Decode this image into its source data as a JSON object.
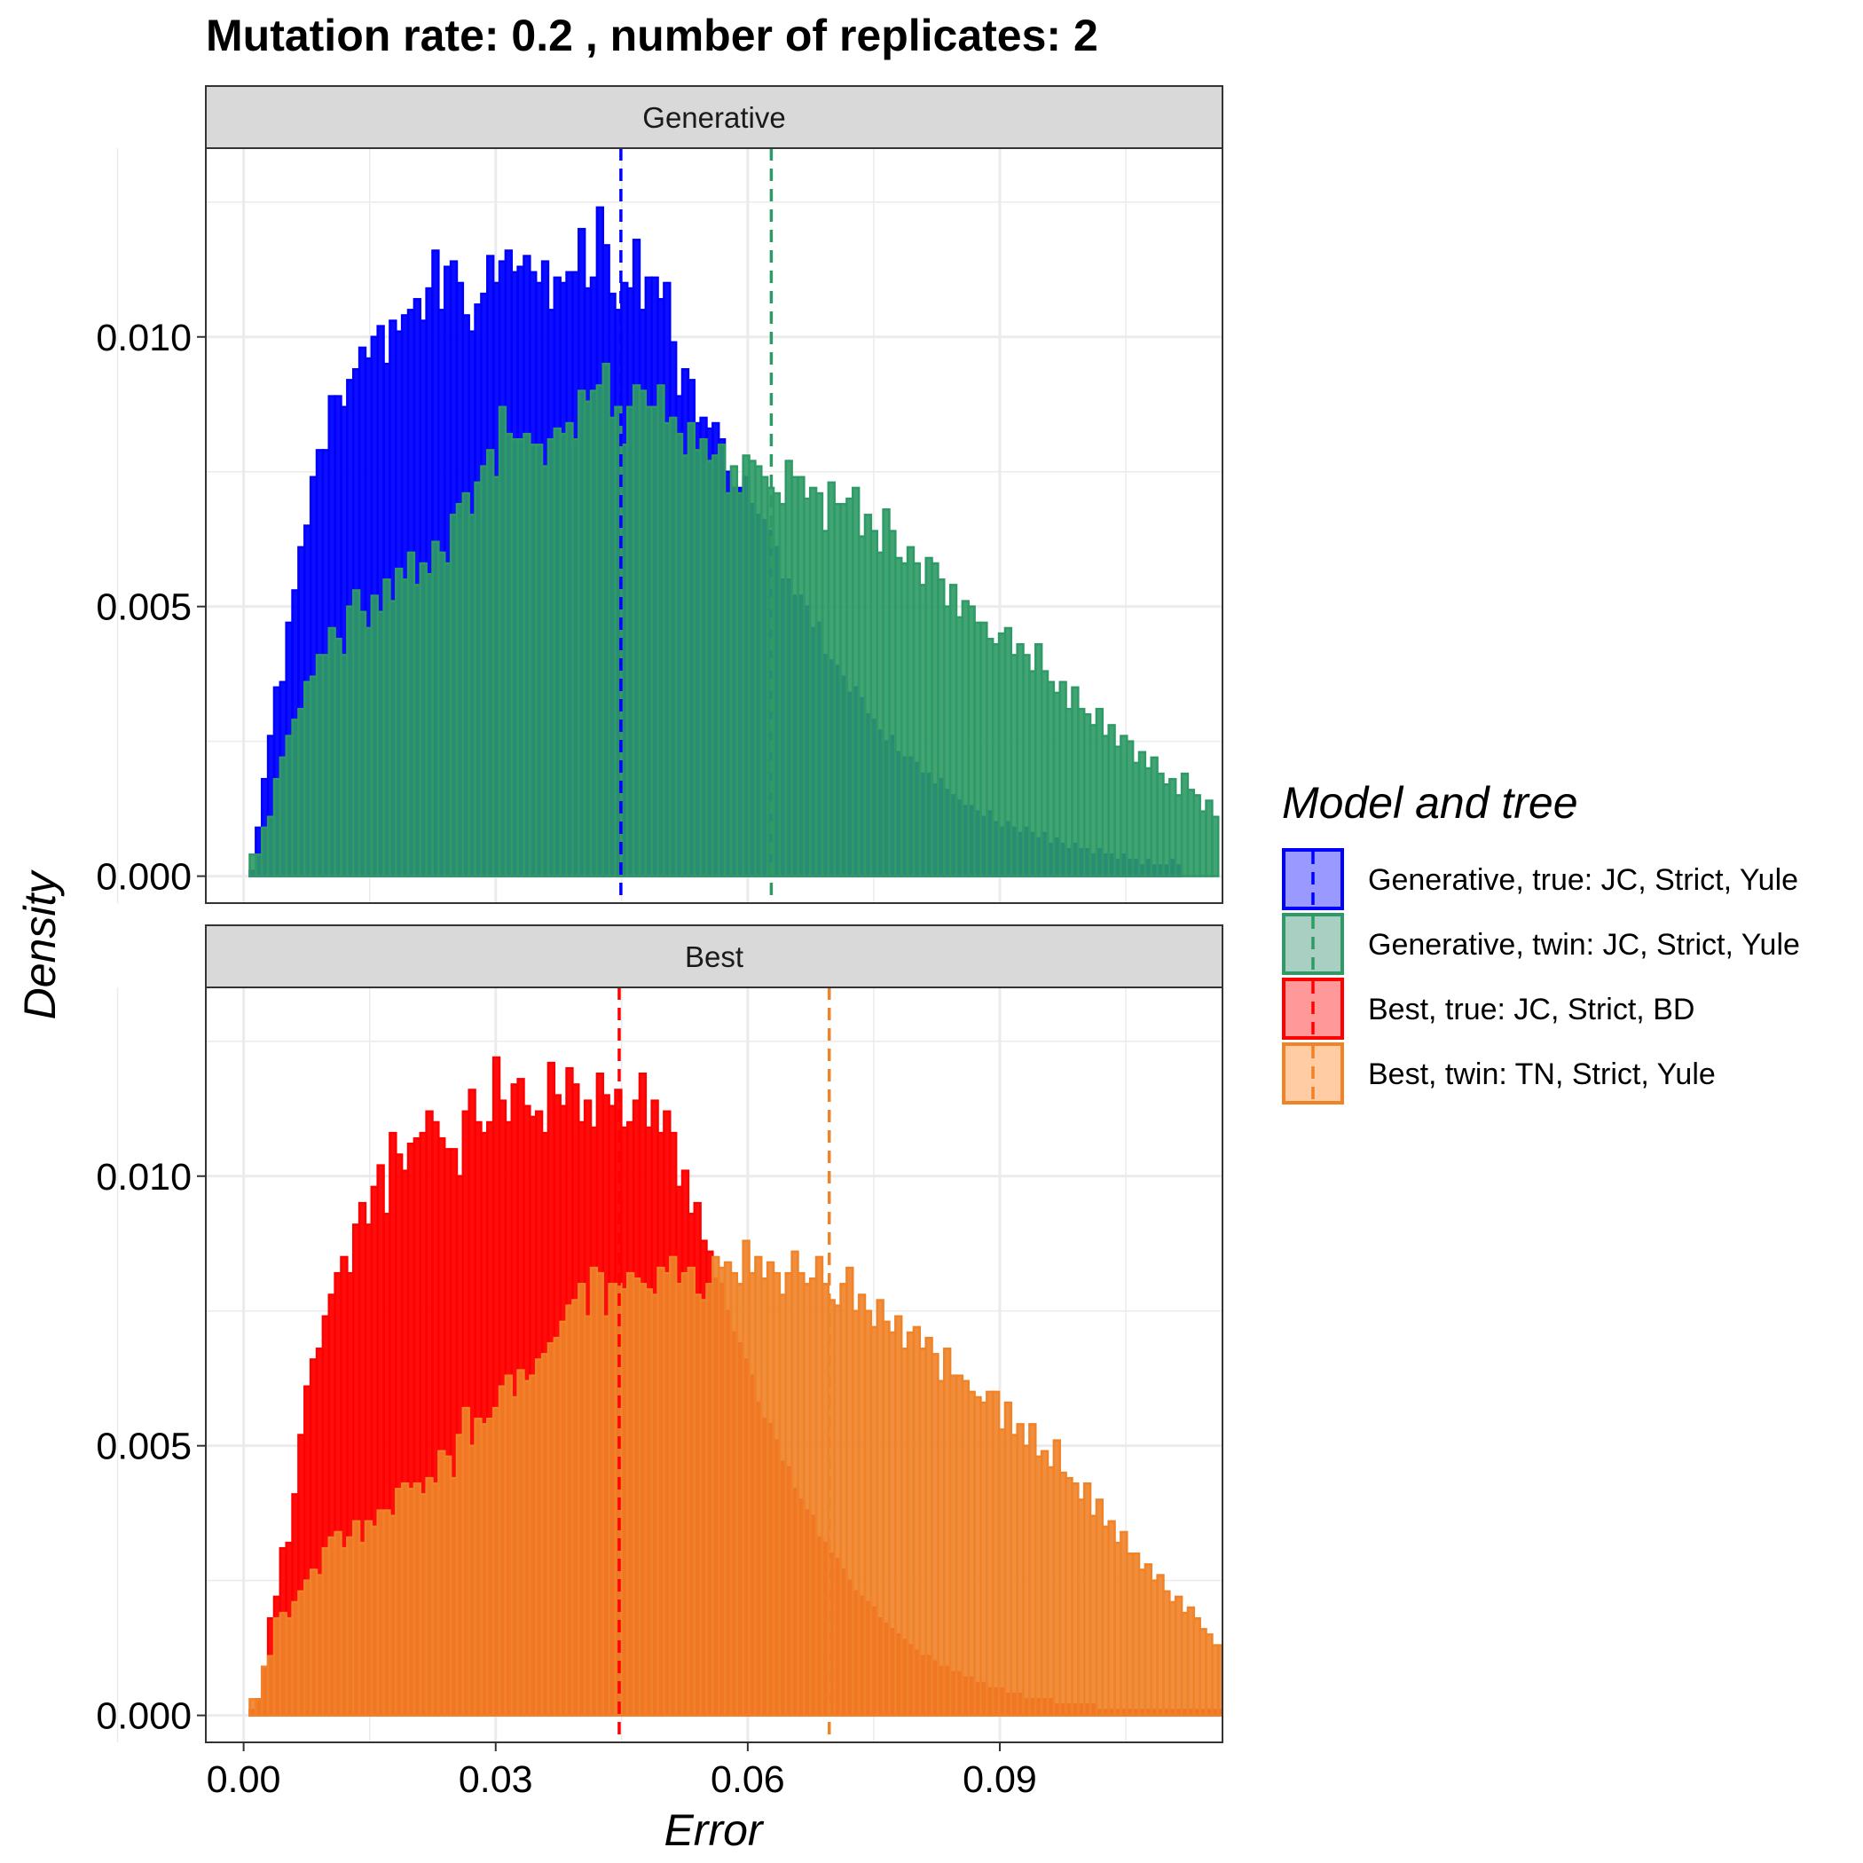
{
  "chart_data": {
    "type": "histogram",
    "title": "Mutation rate:  0.2 , number of replicates: 2",
    "xlabel": "Error",
    "ylabel": "Density",
    "xlim": [
      -0.0045,
      0.1165
    ],
    "ylim": [
      -0.0005,
      0.0135
    ],
    "x_ticks": [
      0.0,
      0.03,
      0.06,
      0.09
    ],
    "x_tick_labels": [
      "0.00",
      "0.03",
      "0.06",
      "0.09"
    ],
    "y_ticks": [
      0.0,
      0.005,
      0.01
    ],
    "y_tick_labels": [
      "0.000",
      "0.005",
      "0.010"
    ],
    "grid": true,
    "legend": {
      "title": "Model and tree",
      "placement": "right",
      "entries": [
        {
          "label": "Generative, true: JC, Strict, Yule",
          "fill": "#9999ff",
          "stroke": "#0000ff"
        },
        {
          "label": "Generative, twin: JC, Strict, Yule",
          "fill": "#a9cfc3",
          "stroke": "#2e9a66"
        },
        {
          "label": "Best, true: JC, Strict, BD",
          "fill": "#ff9999",
          "stroke": "#ff0000"
        },
        {
          "label": "Best, twin: TN, Strict, Yule",
          "fill": "#ffcca3",
          "stroke": "#f08228"
        }
      ]
    },
    "bin_width": 0.000725,
    "panels": [
      {
        "strip_label": "Generative",
        "series": [
          {
            "name": "Generative, true: JC, Strict, Yule",
            "fill": "#0000ff",
            "stroke": "#0000ff",
            "mean": 0.0449,
            "densities": [
              0.0,
              0.0001,
              0.0009,
              0.0018,
              0.0026,
              0.0035,
              0.0036,
              0.0047,
              0.0053,
              0.0061,
              0.0065,
              0.0074,
              0.0079,
              0.0079,
              0.0089,
              0.0089,
              0.0087,
              0.0092,
              0.0094,
              0.0098,
              0.0096,
              0.01,
              0.0102,
              0.0095,
              0.0103,
              0.0101,
              0.0104,
              0.0105,
              0.0107,
              0.0103,
              0.0109,
              0.0116,
              0.0105,
              0.0113,
              0.0114,
              0.011,
              0.0104,
              0.0101,
              0.0106,
              0.0108,
              0.0115,
              0.011,
              0.0114,
              0.0116,
              0.0112,
              0.0113,
              0.0115,
              0.0112,
              0.011,
              0.0114,
              0.0105,
              0.0111,
              0.011,
              0.0112,
              0.0112,
              0.012,
              0.0109,
              0.0111,
              0.0124,
              0.0117,
              0.0108,
              0.0105,
              0.011,
              0.0109,
              0.0118,
              0.0105,
              0.0111,
              0.0111,
              0.0107,
              0.011,
              0.0099,
              0.0089,
              0.0094,
              0.0092,
              0.0084,
              0.0085,
              0.0083,
              0.0084,
              0.0081,
              0.0075,
              0.0072,
              0.0072,
              0.0074,
              0.0069,
              0.0067,
              0.0066,
              0.0064,
              0.0061,
              0.0055,
              0.0055,
              0.0052,
              0.0052,
              0.005,
              0.0046,
              0.0047,
              0.0041,
              0.004,
              0.0039,
              0.0037,
              0.0034,
              0.0035,
              0.0033,
              0.003,
              0.0029,
              0.0027,
              0.0025,
              0.0026,
              0.0023,
              0.0022,
              0.0022,
              0.0021,
              0.0019,
              0.0019,
              0.0017,
              0.0018,
              0.0016,
              0.0015,
              0.0014,
              0.0013,
              0.0013,
              0.0012,
              0.0011,
              0.0012,
              0.001,
              0.0009,
              0.001,
              0.0009,
              0.0008,
              0.0009,
              0.0008,
              0.0007,
              0.0008,
              0.0006,
              0.0007,
              0.0006,
              0.0005,
              0.0006,
              0.0005,
              0.0005,
              0.0004,
              0.0005,
              0.0004,
              0.0004,
              0.0003,
              0.0004,
              0.0003,
              0.0003,
              0.0002,
              0.0003,
              0.0002,
              0.0002,
              0.0002,
              0.0003,
              0.0002
            ]
          },
          {
            "name": "Generative, twin: JC, Strict, Yule",
            "fill": "#2e9a66",
            "stroke": "#2e9a66",
            "mean": 0.0628,
            "densities": [
              0.0,
              0.0004,
              0.0004,
              0.0009,
              0.0011,
              0.0018,
              0.0022,
              0.0026,
              0.0029,
              0.0031,
              0.0036,
              0.0037,
              0.0041,
              0.0041,
              0.0046,
              0.0044,
              0.0041,
              0.005,
              0.0053,
              0.0049,
              0.0046,
              0.0052,
              0.0049,
              0.0055,
              0.0051,
              0.0057,
              0.0055,
              0.006,
              0.0054,
              0.0058,
              0.0056,
              0.0062,
              0.006,
              0.0058,
              0.0067,
              0.0069,
              0.0071,
              0.0067,
              0.0073,
              0.0076,
              0.0079,
              0.0074,
              0.0087,
              0.0082,
              0.0081,
              0.0081,
              0.0082,
              0.008,
              0.008,
              0.0076,
              0.0081,
              0.0083,
              0.0082,
              0.0084,
              0.0081,
              0.009,
              0.0088,
              0.009,
              0.0091,
              0.0095,
              0.0085,
              0.0087,
              0.008,
              0.0087,
              0.0091,
              0.009,
              0.0087,
              0.0087,
              0.0091,
              0.0084,
              0.0085,
              0.0082,
              0.0078,
              0.0084,
              0.0079,
              0.0081,
              0.0077,
              0.0078,
              0.008,
              0.0071,
              0.0076,
              0.0071,
              0.0078,
              0.0077,
              0.0076,
              0.0074,
              0.0072,
              0.0071,
              0.0069,
              0.0077,
              0.0074,
              0.0074,
              0.007,
              0.0072,
              0.0071,
              0.0064,
              0.0073,
              0.0069,
              0.0069,
              0.007,
              0.0072,
              0.0063,
              0.0067,
              0.0064,
              0.006,
              0.0068,
              0.0064,
              0.0059,
              0.0058,
              0.0061,
              0.0058,
              0.0054,
              0.0059,
              0.0058,
              0.0055,
              0.005,
              0.0054,
              0.0048,
              0.0051,
              0.005,
              0.0047,
              0.0047,
              0.0044,
              0.0043,
              0.0045,
              0.0046,
              0.0041,
              0.0043,
              0.0041,
              0.0038,
              0.0043,
              0.0038,
              0.0036,
              0.0034,
              0.0036,
              0.0031,
              0.0035,
              0.0031,
              0.003,
              0.0028,
              0.0031,
              0.0026,
              0.0028,
              0.0024,
              0.0026,
              0.0025,
              0.0021,
              0.0023,
              0.002,
              0.0022,
              0.0019,
              0.0017,
              0.0018,
              0.0015,
              0.0019,
              0.0016,
              0.0015,
              0.0012,
              0.0014,
              0.0011
            ]
          }
        ]
      },
      {
        "strip_label": "Best",
        "series": [
          {
            "name": "Best, true: JC, Strict, BD",
            "fill": "#ff0000",
            "stroke": "#ff0000",
            "mean": 0.0447,
            "densities": [
              0.0,
              0.0001,
              0.0003,
              0.0009,
              0.0018,
              0.0022,
              0.0031,
              0.0032,
              0.0041,
              0.0052,
              0.0061,
              0.0066,
              0.0068,
              0.0074,
              0.0078,
              0.0082,
              0.0085,
              0.0082,
              0.0091,
              0.0095,
              0.0091,
              0.0098,
              0.0102,
              0.0093,
              0.0108,
              0.0104,
              0.0101,
              0.0106,
              0.0107,
              0.0108,
              0.0112,
              0.011,
              0.0107,
              0.0105,
              0.0105,
              0.01,
              0.0112,
              0.0116,
              0.011,
              0.0108,
              0.011,
              0.0122,
              0.0114,
              0.011,
              0.0117,
              0.0118,
              0.0113,
              0.0111,
              0.0112,
              0.0108,
              0.0121,
              0.0115,
              0.0113,
              0.012,
              0.0117,
              0.011,
              0.0114,
              0.0109,
              0.0119,
              0.0115,
              0.0113,
              0.0116,
              0.0109,
              0.011,
              0.0114,
              0.0119,
              0.0109,
              0.0114,
              0.0108,
              0.0112,
              0.0108,
              0.0098,
              0.0101,
              0.0093,
              0.0095,
              0.0088,
              0.0086,
              0.0081,
              0.008,
              0.0075,
              0.0071,
              0.0069,
              0.0066,
              0.0063,
              0.0058,
              0.0055,
              0.0054,
              0.0051,
              0.0047,
              0.0046,
              0.0042,
              0.004,
              0.0038,
              0.0037,
              0.0033,
              0.0032,
              0.003,
              0.0029,
              0.0027,
              0.0025,
              0.0023,
              0.0022,
              0.0021,
              0.002,
              0.0018,
              0.0017,
              0.0016,
              0.0015,
              0.0014,
              0.0013,
              0.0012,
              0.0011,
              0.0011,
              0.001,
              0.0009,
              0.0009,
              0.0008,
              0.0008,
              0.0007,
              0.0007,
              0.0006,
              0.0006,
              0.0005,
              0.0005,
              0.0005,
              0.0004,
              0.0004,
              0.0004,
              0.0003,
              0.0003,
              0.0003,
              0.0003,
              0.0003,
              0.0002,
              0.0002,
              0.0002,
              0.0002,
              0.0002,
              0.0002,
              0.0002,
              0.0001,
              0.0001,
              0.0001,
              0.0001,
              0.0001,
              0.0001,
              0.0001,
              0.0001,
              0.0001,
              0.0001,
              0.0001,
              0.0001,
              0.0001,
              0.0001,
              0.0001,
              0.0001,
              0.0001,
              0.0001,
              0.0001,
              0.0001,
              0.0001
            ]
          },
          {
            "name": "Best, twin: TN, Strict, Yule",
            "fill": "#f08228",
            "stroke": "#f08228",
            "mean": 0.0697,
            "densities": [
              0.0,
              0.0003,
              0.0003,
              0.0009,
              0.0011,
              0.0018,
              0.0019,
              0.0018,
              0.0021,
              0.0023,
              0.0025,
              0.0027,
              0.0026,
              0.0031,
              0.0033,
              0.0034,
              0.0031,
              0.0033,
              0.0036,
              0.0032,
              0.0036,
              0.0035,
              0.0038,
              0.0038,
              0.0037,
              0.0042,
              0.0043,
              0.0042,
              0.0043,
              0.0041,
              0.0044,
              0.0043,
              0.0049,
              0.0048,
              0.0044,
              0.0052,
              0.0057,
              0.005,
              0.0055,
              0.0054,
              0.0055,
              0.0057,
              0.0061,
              0.0063,
              0.0059,
              0.0064,
              0.0062,
              0.0063,
              0.0066,
              0.0067,
              0.0069,
              0.007,
              0.0073,
              0.0076,
              0.0077,
              0.008,
              0.0074,
              0.0083,
              0.0082,
              0.0074,
              0.008,
              0.008,
              0.0079,
              0.0082,
              0.0081,
              0.008,
              0.0079,
              0.0078,
              0.0083,
              0.0082,
              0.0085,
              0.008,
              0.0082,
              0.0083,
              0.0078,
              0.0077,
              0.008,
              0.0085,
              0.0083,
              0.0084,
              0.0082,
              0.008,
              0.0088,
              0.0082,
              0.0085,
              0.0081,
              0.0084,
              0.0082,
              0.0078,
              0.0082,
              0.0086,
              0.0082,
              0.008,
              0.0081,
              0.0085,
              0.008,
              0.0077,
              0.0076,
              0.008,
              0.0083,
              0.0075,
              0.0078,
              0.0075,
              0.0072,
              0.0077,
              0.0073,
              0.0071,
              0.0074,
              0.0068,
              0.0071,
              0.0072,
              0.0068,
              0.007,
              0.0067,
              0.0062,
              0.0068,
              0.0063,
              0.0063,
              0.0062,
              0.006,
              0.0059,
              0.0058,
              0.006,
              0.006,
              0.0053,
              0.0058,
              0.0052,
              0.0054,
              0.005,
              0.0054,
              0.0048,
              0.0049,
              0.0046,
              0.0051,
              0.0045,
              0.0044,
              0.0043,
              0.004,
              0.0043,
              0.0037,
              0.004,
              0.0035,
              0.0036,
              0.0032,
              0.0034,
              0.003,
              0.003,
              0.0027,
              0.0028,
              0.0025,
              0.0026,
              0.0023,
              0.0021,
              0.0022,
              0.0019,
              0.002,
              0.0018,
              0.0016,
              0.0015,
              0.0013,
              0.0013
            ]
          }
        ]
      }
    ]
  }
}
